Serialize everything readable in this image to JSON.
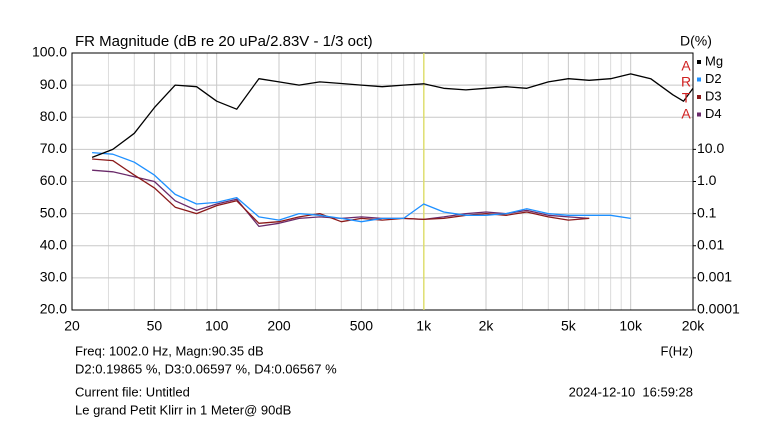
{
  "chart_data": {
    "type": "line",
    "title": "FR Magnitude (dB re 20 uPa/2.83V - 1/3 oct)",
    "y2_label": "D(%)",
    "x_label": "F(Hz)",
    "x_scale": "log",
    "y2_scale": "log",
    "grid": true,
    "legend": "right",
    "logo_letters": [
      "A",
      "R",
      "T",
      "A"
    ],
    "logo_color": "#d02020",
    "x": [
      25,
      31.5,
      40,
      50,
      63,
      80,
      100,
      125,
      160,
      200,
      250,
      315,
      400,
      500,
      630,
      800,
      1000,
      1250,
      1600,
      2000,
      2500,
      3150,
      4000,
      5000,
      6300,
      8000,
      10000,
      12500,
      16000,
      18000,
      20000
    ],
    "series": [
      {
        "name": "Mg",
        "color": "#000000",
        "axis": "y",
        "values": [
          67.5,
          70,
          75,
          83,
          90,
          89.5,
          85,
          82.5,
          92,
          91,
          90,
          91,
          90.5,
          90,
          89.5,
          90,
          90.4,
          89,
          88.5,
          89,
          89.5,
          89,
          91,
          92,
          91.5,
          92,
          93.5,
          92,
          87,
          85,
          89
        ]
      },
      {
        "name": "D2",
        "color": "#1e90ff",
        "axis": "y2",
        "values": [
          7.94,
          7.08,
          3.98,
          1.58,
          0.398,
          0.2,
          0.224,
          0.316,
          0.079,
          0.063,
          0.1,
          0.089,
          0.071,
          0.056,
          0.071,
          0.071,
          0.199,
          0.112,
          0.089,
          0.089,
          0.1,
          0.141,
          0.1,
          0.089,
          0.089,
          0.089,
          0.071,
          null,
          null,
          null,
          null
        ]
      },
      {
        "name": "D3",
        "color": "#8b1a1a",
        "axis": "y2",
        "values": [
          5.0,
          4.47,
          1.58,
          0.63,
          0.158,
          0.1,
          0.178,
          0.251,
          0.05,
          0.056,
          0.079,
          0.1,
          0.056,
          0.071,
          0.063,
          0.071,
          0.066,
          0.071,
          0.089,
          0.1,
          0.089,
          0.112,
          0.079,
          0.063,
          0.071,
          null,
          null,
          null,
          null,
          null,
          null
        ]
      },
      {
        "name": "D4",
        "color": "#6a2a6a",
        "axis": "y2",
        "values": [
          2.24,
          2.0,
          1.41,
          1.0,
          0.251,
          0.126,
          0.2,
          0.282,
          0.04,
          0.05,
          0.071,
          0.079,
          0.071,
          0.079,
          0.071,
          0.071,
          0.066,
          0.079,
          0.1,
          0.112,
          0.1,
          0.126,
          0.089,
          0.079,
          0.071,
          null,
          null,
          null,
          null,
          null,
          null
        ]
      }
    ],
    "xlim": [
      20,
      20000
    ],
    "xticks": [
      20,
      50,
      100,
      200,
      500,
      {
        "value": 1000,
        "label": "1k"
      },
      {
        "value": 2000,
        "label": "2k"
      },
      {
        "value": 5000,
        "label": "5k"
      },
      {
        "value": 10000,
        "label": "10k"
      },
      {
        "value": 20000,
        "label": "20k"
      }
    ],
    "x_minor_ticks": [
      30,
      40,
      60,
      70,
      80,
      90,
      300,
      400,
      600,
      700,
      800,
      900,
      3000,
      4000,
      6000,
      7000,
      8000,
      9000
    ],
    "ylim": [
      20,
      100
    ],
    "yticks": [
      {
        "value": 20,
        "label": "20.0"
      },
      {
        "value": 30,
        "label": "30.0"
      },
      {
        "value": 40,
        "label": "40.0"
      },
      {
        "value": 50,
        "label": "50.0"
      },
      {
        "value": 60,
        "label": "60.0"
      },
      {
        "value": 70,
        "label": "70.0"
      },
      {
        "value": 80,
        "label": "80.0"
      },
      {
        "value": 90,
        "label": "90.0"
      },
      {
        "value": 100,
        "label": "100.0"
      }
    ],
    "y2lim": [
      0.0001,
      10000
    ],
    "y2ticks": [
      0.0001,
      0.001,
      0.01,
      0.1,
      {
        "value": 1,
        "label": "1.0"
      },
      {
        "value": 10,
        "label": "10.0"
      }
    ],
    "cursor_x": 1002.0,
    "cursor_color": "#e0e060",
    "cursor_text": [
      "Freq: 1002.0 Hz, Magn:90.35 dB",
      "D2:0.19865 %, D3:0.06597 %, D4:0.06567 %"
    ],
    "file_text": [
      "Current file: Untitled",
      "Le grand Petit Klirr in 1 Meter@ 90dB"
    ],
    "timestamp": "2024-12-10  16:59:28"
  }
}
